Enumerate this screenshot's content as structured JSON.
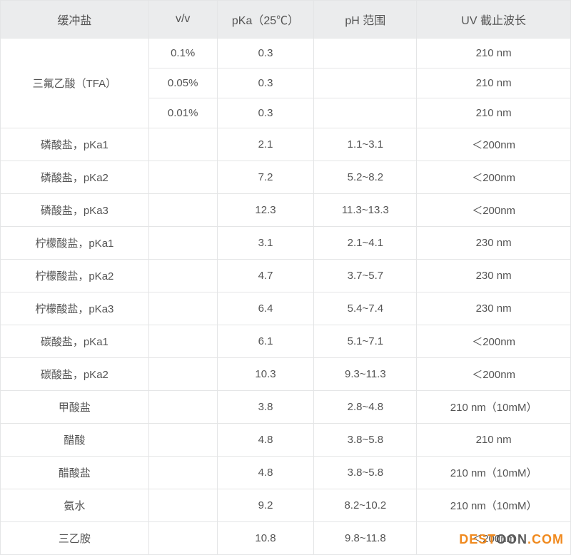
{
  "headers": {
    "col1": "缓冲盐",
    "col2": "v/v",
    "col3": "pKa（25℃）",
    "col4": "pH 范围",
    "col5": "UV 截止波长"
  },
  "rows": [
    {
      "name": "三氟乙酸（TFA）",
      "rowspan": 3,
      "vv": "0.1%",
      "pka": "0.3",
      "ph": "",
      "uv": "210 nm"
    },
    {
      "name": "",
      "rowspan": 0,
      "vv": "0.05%",
      "pka": "0.3",
      "ph": "",
      "uv": "210 nm"
    },
    {
      "name": "",
      "rowspan": 0,
      "vv": "0.01%",
      "pka": "0.3",
      "ph": "",
      "uv": "210 nm"
    },
    {
      "name": "磷酸盐，pKa1",
      "rowspan": 1,
      "vv": "",
      "pka": "2.1",
      "ph": "1.1~3.1",
      "uv": "＜200nm"
    },
    {
      "name": "磷酸盐，pKa2",
      "rowspan": 1,
      "vv": "",
      "pka": "7.2",
      "ph": "5.2~8.2",
      "uv": "＜200nm"
    },
    {
      "name": "磷酸盐，pKa3",
      "rowspan": 1,
      "vv": "",
      "pka": "12.3",
      "ph": "11.3~13.3",
      "uv": "＜200nm"
    },
    {
      "name": "柠檬酸盐，pKa1",
      "rowspan": 1,
      "vv": "",
      "pka": "3.1",
      "ph": "2.1~4.1",
      "uv": "230 nm"
    },
    {
      "name": "柠檬酸盐，pKa2",
      "rowspan": 1,
      "vv": "",
      "pka": "4.7",
      "ph": "3.7~5.7",
      "uv": "230 nm"
    },
    {
      "name": "柠檬酸盐，pKa3",
      "rowspan": 1,
      "vv": "",
      "pka": "6.4",
      "ph": "5.4~7.4",
      "uv": "230 nm"
    },
    {
      "name": "碳酸盐，pKa1",
      "rowspan": 1,
      "vv": "",
      "pka": "6.1",
      "ph": "5.1~7.1",
      "uv": "＜200nm"
    },
    {
      "name": "碳酸盐，pKa2",
      "rowspan": 1,
      "vv": "",
      "pka": "10.3",
      "ph": "9.3~11.3",
      "uv": "＜200nm"
    },
    {
      "name": "甲酸盐",
      "rowspan": 1,
      "vv": "",
      "pka": "3.8",
      "ph": "2.8~4.8",
      "uv": "210 nm（10mM）"
    },
    {
      "name": "醋酸",
      "rowspan": 1,
      "vv": "",
      "pka": "4.8",
      "ph": "3.8~5.8",
      "uv": "210 nm"
    },
    {
      "name": "醋酸盐",
      "rowspan": 1,
      "vv": "",
      "pka": "4.8",
      "ph": "3.8~5.8",
      "uv": "210 nm（10mM）"
    },
    {
      "name": "氨水",
      "rowspan": 1,
      "vv": "",
      "pka": "9.2",
      "ph": "8.2~10.2",
      "uv": "210 nm（10mM）"
    },
    {
      "name": "三乙胺",
      "rowspan": 1,
      "vv": "",
      "pka": "10.8",
      "ph": "9.8~11.8",
      "uv": "＜200nm"
    }
  ],
  "watermark": {
    "part1": "DEST",
    "part2": "OON",
    "part3": ".COM"
  },
  "colors": {
    "header_bg": "#ebeced",
    "text": "#545454",
    "border": "#e4e5e6",
    "wm_orange": "#f08a1f",
    "wm_gray": "#5a5a5a"
  }
}
